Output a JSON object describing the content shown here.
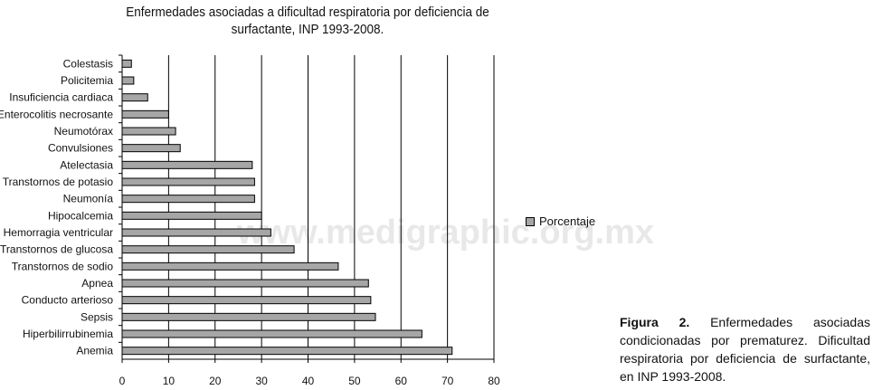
{
  "figure": {
    "label": "Figura 2.",
    "caption": "Enfermedades asociadas condicionadas por prematurez. Dificultad respiratoria por deficiencia de surfactante, en INP 1993-2008."
  },
  "watermark": "www.medigraphic.org.mx",
  "colors": {
    "bar": "#a6a6a6",
    "bar_stroke": "#000000",
    "grid": "#000000"
  },
  "chart_data": {
    "type": "bar",
    "orientation": "horizontal",
    "title": "Enfermedades asociadas a dificultad respiratoria por deficiencia de surfactante, INP 1993-2008.",
    "xlabel": "",
    "ylabel": "",
    "xlim": [
      0,
      80
    ],
    "xticks": [
      0,
      10,
      20,
      30,
      40,
      50,
      60,
      70,
      80
    ],
    "grid": true,
    "legend_position": "right",
    "categories": [
      "Colestasis",
      "Policitemia",
      "Insuficiencia cardiaca",
      "Enterocolitis necrosante",
      "Neumotórax",
      "Convulsiones",
      "Atelectasia",
      "Transtornos de potasio",
      "Neumonía",
      "Hipocalcemia",
      "Hemorragia ventricular",
      "Transtornos de glucosa",
      "Transtornos de sodio",
      "Apnea",
      "Conducto arterioso",
      "Sepsis",
      "Hiperbilirrubinemia",
      "Anemia"
    ],
    "series": [
      {
        "name": "Porcentaje",
        "values": [
          2,
          2.5,
          5.5,
          10,
          11.5,
          12.5,
          28,
          28.5,
          28.5,
          30,
          32,
          37,
          46.5,
          53,
          53.5,
          54.5,
          64.5,
          71
        ]
      }
    ]
  }
}
